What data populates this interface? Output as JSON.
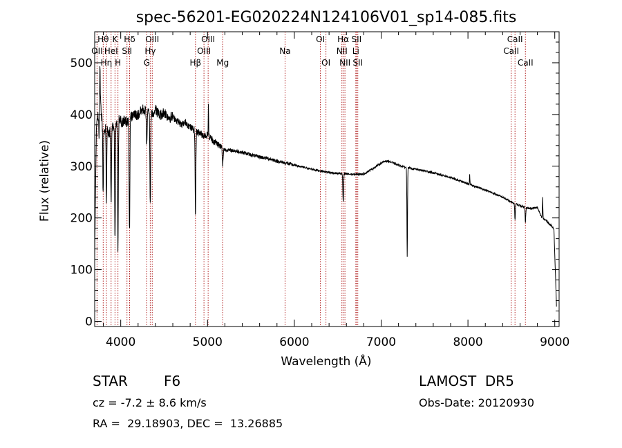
{
  "chart_data": {
    "type": "line",
    "title": "spec-56201-EG020224N124106V01_sp14-085.fits",
    "xlabel": "Wavelength (Å)",
    "ylabel": "Flux (relative)",
    "xlim": [
      3700,
      9050
    ],
    "ylim": [
      -10,
      560
    ],
    "xticks": [
      4000,
      5000,
      6000,
      7000,
      8000,
      9000
    ],
    "yticks": [
      0,
      100,
      200,
      300,
      400,
      500
    ],
    "grid": false,
    "line_color": "#000000",
    "marker_color": "#b22222",
    "spectrum_anchors": [
      [
        3700,
        120
      ],
      [
        3720,
        380
      ],
      [
        3740,
        400
      ],
      [
        3760,
        440
      ],
      [
        3780,
        395
      ],
      [
        3800,
        360
      ],
      [
        3830,
        380
      ],
      [
        3860,
        360
      ],
      [
        3890,
        375
      ],
      [
        3920,
        380
      ],
      [
        3950,
        385
      ],
      [
        3980,
        395
      ],
      [
        4010,
        385
      ],
      [
        4040,
        390
      ],
      [
        4080,
        385
      ],
      [
        4120,
        395
      ],
      [
        4160,
        400
      ],
      [
        4200,
        398
      ],
      [
        4250,
        410
      ],
      [
        4300,
        405
      ],
      [
        4350,
        400
      ],
      [
        4400,
        410
      ],
      [
        4450,
        398
      ],
      [
        4500,
        405
      ],
      [
        4550,
        395
      ],
      [
        4600,
        395
      ],
      [
        4650,
        388
      ],
      [
        4700,
        380
      ],
      [
        4750,
        385
      ],
      [
        4800,
        375
      ],
      [
        4850,
        370
      ],
      [
        4900,
        365
      ],
      [
        4950,
        360
      ],
      [
        5000,
        360
      ],
      [
        5050,
        352
      ],
      [
        5100,
        345
      ],
      [
        5150,
        338
      ],
      [
        5200,
        332
      ],
      [
        5300,
        330
      ],
      [
        5400,
        327
      ],
      [
        5500,
        322
      ],
      [
        5600,
        318
      ],
      [
        5700,
        315
      ],
      [
        5800,
        310
      ],
      [
        5900,
        306
      ],
      [
        6000,
        302
      ],
      [
        6100,
        298
      ],
      [
        6200,
        294
      ],
      [
        6300,
        291
      ],
      [
        6400,
        288
      ],
      [
        6500,
        286
      ],
      [
        6600,
        285
      ],
      [
        6700,
        284
      ],
      [
        6800,
        285
      ],
      [
        6900,
        295
      ],
      [
        7000,
        306
      ],
      [
        7050,
        310
      ],
      [
        7100,
        309
      ],
      [
        7200,
        302
      ],
      [
        7300,
        297
      ],
      [
        7400,
        294
      ],
      [
        7500,
        291
      ],
      [
        7600,
        287
      ],
      [
        7700,
        283
      ],
      [
        7800,
        278
      ],
      [
        7900,
        272
      ],
      [
        8000,
        266
      ],
      [
        8100,
        260
      ],
      [
        8200,
        254
      ],
      [
        8300,
        247
      ],
      [
        8400,
        240
      ],
      [
        8500,
        230
      ],
      [
        8600,
        224
      ],
      [
        8700,
        218
      ],
      [
        8800,
        220
      ],
      [
        8850,
        200
      ],
      [
        8900,
        195
      ],
      [
        9000,
        178
      ],
      [
        9020,
        180
      ]
    ],
    "absorption_features": [
      {
        "x": 3750,
        "depth": 60,
        "width": 6
      },
      {
        "x": 3797,
        "depth": 120,
        "width": 5
      },
      {
        "x": 3835,
        "depth": 150,
        "width": 5
      },
      {
        "x": 3889,
        "depth": 140,
        "width": 6
      },
      {
        "x": 3934,
        "depth": 230,
        "width": 6
      },
      {
        "x": 3968,
        "depth": 250,
        "width": 6
      },
      {
        "x": 4101,
        "depth": 220,
        "width": 6
      },
      {
        "x": 4300,
        "depth": 70,
        "width": 5
      },
      {
        "x": 4340,
        "depth": 180,
        "width": 6
      },
      {
        "x": 4861,
        "depth": 165,
        "width": 6
      },
      {
        "x": 5175,
        "depth": 35,
        "width": 6
      },
      {
        "x": 6563,
        "depth": 55,
        "width": 6
      },
      {
        "x": 7300,
        "depth": 170,
        "width": 5
      },
      {
        "x": 8542,
        "depth": 30,
        "width": 5
      },
      {
        "x": 8662,
        "depth": 28,
        "width": 5
      }
    ],
    "emission_features": [
      {
        "x": 3761,
        "height": 60,
        "width": 3
      },
      {
        "x": 5010,
        "height": 65,
        "width": 3
      },
      {
        "x": 8020,
        "height": 18,
        "width": 3
      },
      {
        "x": 8860,
        "height": 40,
        "width": 4
      }
    ],
    "line_markers": [
      {
        "x": 3727,
        "label": "OII",
        "row": 1
      },
      {
        "x": 3798,
        "label": "Hθ",
        "row": 0
      },
      {
        "x": 3835,
        "label": "Hη",
        "row": 2
      },
      {
        "x": 3889,
        "label": "HeI",
        "row": 1
      },
      {
        "x": 3934,
        "label": "K",
        "row": 0
      },
      {
        "x": 3968,
        "label": "H",
        "row": 2
      },
      {
        "x": 4072,
        "label": "SII",
        "row": 1
      },
      {
        "x": 4102,
        "label": "Hδ",
        "row": 0
      },
      {
        "x": 4300,
        "label": "G",
        "row": 2
      },
      {
        "x": 4340,
        "label": "Hγ",
        "row": 1
      },
      {
        "x": 4363,
        "label": "OIII",
        "row": 0
      },
      {
        "x": 4861,
        "label": "Hβ",
        "row": 2
      },
      {
        "x": 4959,
        "label": "OIII",
        "row": 1
      },
      {
        "x": 5007,
        "label": "OIII",
        "row": 0
      },
      {
        "x": 5175,
        "label": "Mg",
        "row": 2
      },
      {
        "x": 5893,
        "label": "Na",
        "row": 1
      },
      {
        "x": 6300,
        "label": "OI",
        "row": 0
      },
      {
        "x": 6364,
        "label": "OI",
        "row": 2
      },
      {
        "x": 6548,
        "label": "NII",
        "row": 1
      },
      {
        "x": 6563,
        "label": "Hα",
        "row": 0
      },
      {
        "x": 6583,
        "label": "NII",
        "row": 2
      },
      {
        "x": 6708,
        "label": "Li",
        "row": 1
      },
      {
        "x": 6716,
        "label": "SII",
        "row": 0
      },
      {
        "x": 6731,
        "label": "SII",
        "row": 2
      },
      {
        "x": 8498,
        "label": "CaII",
        "row": 1
      },
      {
        "x": 8542,
        "label": "CaII",
        "row": 0
      },
      {
        "x": 8662,
        "label": "CaII",
        "row": 2
      }
    ]
  },
  "info": {
    "class_label": "STAR",
    "subclass": "F6",
    "redshift": "cz = -7.2 ± 8.6 km/s",
    "coords": "RA =  29.18903, DEC =  13.26885",
    "survey": "LAMOST  DR5",
    "obs_date": "Obs-Date: 20120930"
  }
}
